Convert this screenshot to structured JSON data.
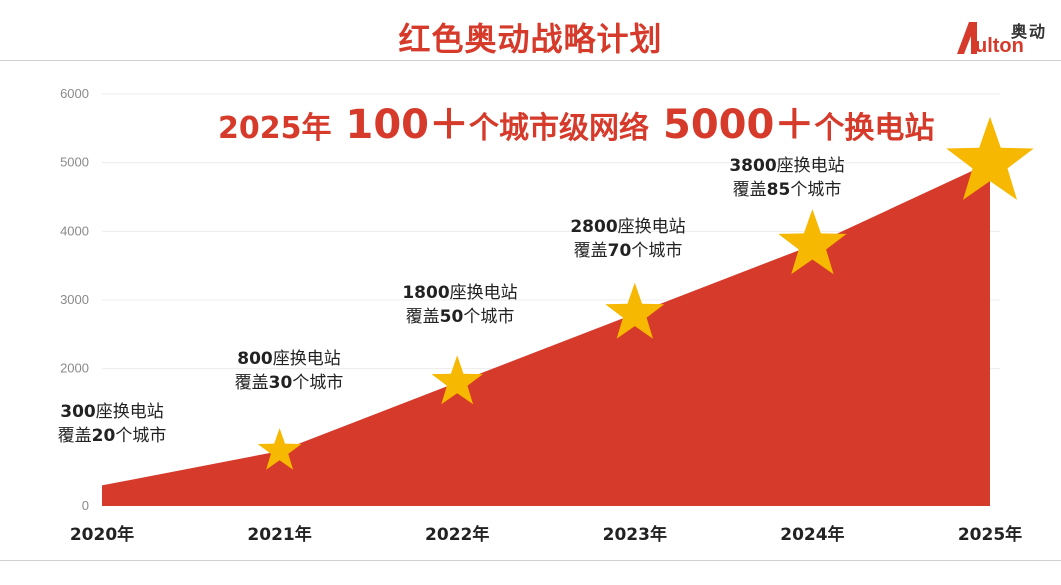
{
  "page": {
    "title": "红色奥动战略计划",
    "logo": {
      "cn": "奥动",
      "en": "ulton"
    }
  },
  "headline": {
    "year": "2025年",
    "cities_num": "100＋",
    "cities_text": "个城市级网络",
    "stations_num": "5000＋",
    "stations_text": "个换电站"
  },
  "chart_data": {
    "type": "area",
    "x": [
      "2020年",
      "2021年",
      "2022年",
      "2023年",
      "2024年",
      "2025年"
    ],
    "values": [
      300,
      800,
      1800,
      2800,
      3800,
      5000
    ],
    "yticks": [
      "0",
      "2000",
      "3000",
      "4000",
      "5000",
      "6000"
    ],
    "ylim": [
      0,
      6000
    ],
    "grid": true,
    "fill_color": "#d63a2a",
    "star_color": "#f6b800",
    "annotations": [
      {
        "line1_num": "300",
        "line1_text": "座换电站",
        "line2_pre": "覆盖",
        "line2_num": "20",
        "line2_post": "个城市"
      },
      {
        "line1_num": "800",
        "line1_text": "座换电站",
        "line2_pre": "覆盖",
        "line2_num": "30",
        "line2_post": "个城市"
      },
      {
        "line1_num": "1800",
        "line1_text": "座换电站",
        "line2_pre": "覆盖",
        "line2_num": "50",
        "line2_post": "个城市"
      },
      {
        "line1_num": "2800",
        "line1_text": "座换电站",
        "line2_pre": "覆盖",
        "line2_num": "70",
        "line2_post": "个城市"
      },
      {
        "line1_num": "3800",
        "line1_text": "座换电站",
        "line2_pre": "覆盖",
        "line2_num": "85",
        "line2_post": "个城市"
      }
    ]
  },
  "colors": {
    "accent": "#d63a2a"
  }
}
